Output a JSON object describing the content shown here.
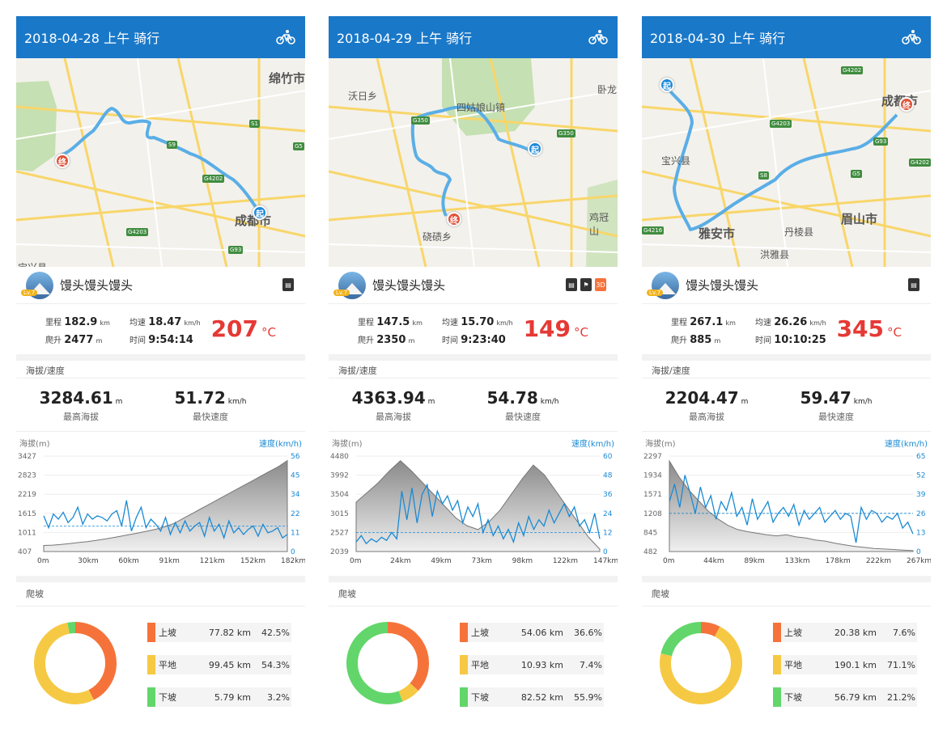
{
  "colors": {
    "up": "#f5733a",
    "flat": "#f6c944",
    "down": "#62d66a",
    "speed": "#1a8ad4",
    "route": "#5aaee6"
  },
  "cards": [
    {
      "title": "2018-04-28 上午 骑行",
      "user": "馒头馒头馒头",
      "level": "Lv.7",
      "map_labels": [
        "绵竹市",
        "成都市",
        "宝兴县"
      ],
      "road_labels": [
        "S1",
        "S9",
        "G4202",
        "G4203",
        "G93",
        "G5"
      ],
      "badges": [
        "doc"
      ],
      "distance": "182.9",
      "climb": "2477",
      "avg_speed": "18.47",
      "time": "9:54:14",
      "temp": "207",
      "max_alt": "3284.61",
      "max_speed": "51.72",
      "alt_ticks": [
        "3427",
        "2823",
        "2219",
        "1615",
        "1011",
        "407"
      ],
      "spd_ticks": [
        "56",
        "45",
        "34",
        "22",
        "11",
        "0"
      ],
      "x_ticks": [
        "0m",
        "30km",
        "60km",
        "91km",
        "121km",
        "152km",
        "182km"
      ],
      "alt_profile": [
        600,
        610,
        630,
        660,
        690,
        720,
        760,
        800,
        850,
        900,
        950,
        1000,
        1060,
        1120,
        1200,
        1300,
        1450,
        1600,
        1750,
        1900,
        2050,
        2200,
        2350,
        2500,
        2650,
        2800,
        2950,
        3100,
        3284
      ],
      "speed_profile": [
        21,
        14,
        22,
        19,
        23,
        17,
        20,
        26,
        16,
        22,
        19,
        21,
        20,
        18,
        22,
        24,
        15,
        30,
        12,
        20,
        26,
        14,
        19,
        16,
        12,
        20,
        10,
        17,
        11,
        18,
        12,
        15,
        17,
        9,
        20,
        12,
        16,
        8,
        18,
        11,
        14,
        10,
        13,
        15,
        9,
        16,
        11,
        12,
        14,
        8,
        10
      ],
      "avg_speed_line": 15,
      "slopes": [
        {
          "name": "上坡",
          "km": "77.82 km",
          "pct": "42.5%",
          "v": 42.5
        },
        {
          "name": "平地",
          "km": "99.45 km",
          "pct": "54.3%",
          "v": 54.3
        },
        {
          "name": "下坡",
          "km": "5.79 km",
          "pct": "3.2%",
          "v": 3.2
        }
      ]
    },
    {
      "title": "2018-04-29 上午 骑行",
      "user": "馒头馒头馒头",
      "level": "Lv.7",
      "map_labels": [
        "沃日乡",
        "四姑娘山镇",
        "卧龙",
        "硗碛乡",
        "鸡冠山"
      ],
      "road_labels": [
        "G350",
        "G350"
      ],
      "badges": [
        "doc",
        "flag",
        "3D"
      ],
      "distance": "147.5",
      "climb": "2350",
      "avg_speed": "15.70",
      "time": "9:23:40",
      "temp": "149",
      "max_alt": "4363.94",
      "max_speed": "54.78",
      "alt_ticks": [
        "4480",
        "3992",
        "3504",
        "3015",
        "2527",
        "2039"
      ],
      "spd_ticks": [
        "60",
        "48",
        "36",
        "24",
        "12",
        "0"
      ],
      "x_ticks": [
        "0m",
        "24km",
        "49km",
        "73km",
        "98km",
        "122km",
        "147km"
      ],
      "alt_profile": [
        3300,
        3550,
        3800,
        4100,
        4363,
        4100,
        3800,
        3500,
        3200,
        2900,
        2700,
        2600,
        2800,
        3100,
        3500,
        3900,
        4250,
        4000,
        3600,
        3200,
        2800,
        2400,
        2100
      ],
      "speed_profile": [
        6,
        10,
        5,
        8,
        6,
        9,
        7,
        12,
        8,
        38,
        20,
        40,
        18,
        36,
        42,
        22,
        38,
        30,
        35,
        26,
        32,
        18,
        28,
        22,
        30,
        12,
        20,
        10,
        16,
        8,
        14,
        6,
        18,
        10,
        22,
        14,
        20,
        16,
        26,
        18,
        24,
        30,
        22,
        28,
        16,
        20,
        12,
        24,
        8
      ],
      "avg_speed_line": 12,
      "slopes": [
        {
          "name": "上坡",
          "km": "54.06 km",
          "pct": "36.6%",
          "v": 36.6
        },
        {
          "name": "平地",
          "km": "10.93 km",
          "pct": "7.4%",
          "v": 7.4
        },
        {
          "name": "下坡",
          "km": "82.52 km",
          "pct": "55.9%",
          "v": 55.9
        }
      ]
    },
    {
      "title": "2018-04-30 上午 骑行",
      "user": "馒头馒头馒头",
      "level": "Lv.7",
      "map_labels": [
        "成都市",
        "宝兴县",
        "雅安市",
        "丹棱县",
        "眉山市",
        "洪雅县"
      ],
      "road_labels": [
        "G4202",
        "G4203",
        "G93",
        "S8",
        "G5",
        "G4216",
        "G4202"
      ],
      "badges": [
        "doc"
      ],
      "distance": "267.1",
      "climb": "885",
      "avg_speed": "26.26",
      "time": "10:10:25",
      "temp": "345",
      "max_alt": "2204.47",
      "max_speed": "59.47",
      "alt_ticks": [
        "2297",
        "1934",
        "1571",
        "1208",
        "845",
        "482"
      ],
      "spd_ticks": [
        "65",
        "52",
        "39",
        "26",
        "13",
        "0"
      ],
      "x_ticks": [
        "0m",
        "44km",
        "89km",
        "133km",
        "178km",
        "222km",
        "267km"
      ],
      "alt_profile": [
        2204,
        1900,
        1650,
        1450,
        1250,
        1100,
        980,
        900,
        860,
        830,
        800,
        780,
        800,
        760,
        740,
        700,
        680,
        640,
        610,
        580,
        560,
        540,
        530,
        520,
        510,
        500
      ],
      "speed_profile": [
        34,
        46,
        30,
        52,
        40,
        26,
        44,
        30,
        38,
        22,
        34,
        28,
        40,
        24,
        30,
        18,
        36,
        22,
        28,
        34,
        20,
        26,
        30,
        24,
        32,
        18,
        28,
        22,
        26,
        30,
        20,
        24,
        28,
        22,
        26,
        24,
        6,
        30,
        22,
        28,
        26,
        20,
        24,
        22,
        26,
        16,
        20,
        12
      ],
      "avg_speed_line": 26,
      "slopes": [
        {
          "name": "上坡",
          "km": "20.38 km",
          "pct": "7.6%",
          "v": 7.6
        },
        {
          "name": "平地",
          "km": "190.1 km",
          "pct": "71.1%",
          "v": 71.1
        },
        {
          "name": "下坡",
          "km": "56.79 km",
          "pct": "21.2%",
          "v": 21.2
        }
      ]
    }
  ],
  "labels": {
    "distance": "里程",
    "climb": "爬升",
    "avg": "均速",
    "time": "时间",
    "km": "km",
    "m": "m",
    "kmh": "km/h",
    "celsius": "°C",
    "alt_speed": "海拔/速度",
    "max_alt": "最高海拔",
    "max_speed": "最快速度",
    "alt_axis": "海拔(m)",
    "spd_axis": "速度(km/h)",
    "climb_sec": "爬坡"
  }
}
